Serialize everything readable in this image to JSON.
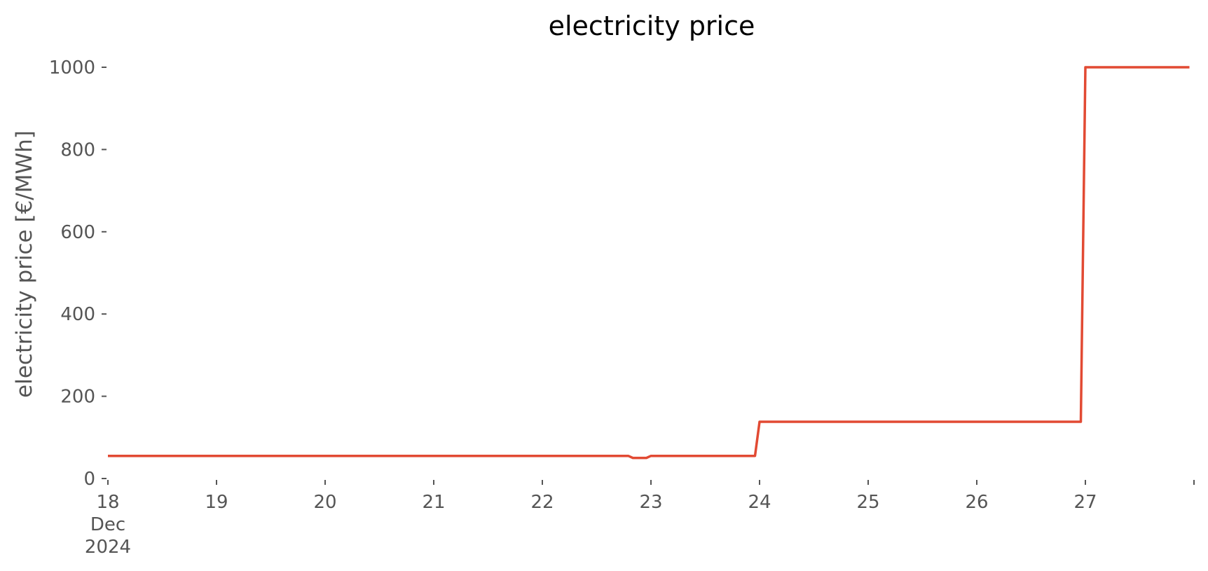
{
  "chart_data": {
    "type": "line",
    "title": "electricity price",
    "xlabel": "",
    "ylabel": "electricity price [€/MWh]",
    "grid": false,
    "legend": "none",
    "xlim": [
      "2024-12-18T00:00",
      "2024-12-27T23:00"
    ],
    "ylim": [
      0,
      1000
    ],
    "yticks": [
      0,
      200,
      400,
      600,
      800,
      1000
    ],
    "xticks": [
      {
        "value": "2024-12-18T00:00",
        "label": [
          "18",
          "Dec",
          "2024"
        ]
      },
      {
        "value": "2024-12-19T00:00",
        "label": [
          "19"
        ]
      },
      {
        "value": "2024-12-20T00:00",
        "label": [
          "20"
        ]
      },
      {
        "value": "2024-12-21T00:00",
        "label": [
          "21"
        ]
      },
      {
        "value": "2024-12-22T00:00",
        "label": [
          "22"
        ]
      },
      {
        "value": "2024-12-23T00:00",
        "label": [
          "23"
        ]
      },
      {
        "value": "2024-12-24T00:00",
        "label": [
          "24"
        ]
      },
      {
        "value": "2024-12-25T00:00",
        "label": [
          "25"
        ]
      },
      {
        "value": "2024-12-26T00:00",
        "label": [
          "26"
        ]
      },
      {
        "value": "2024-12-27T00:00",
        "label": [
          "27"
        ]
      },
      {
        "value": "2024-12-28T00:00",
        "label": []
      }
    ],
    "series": [
      {
        "color": "#e24a33",
        "points": [
          {
            "x": "2024-12-18T00:00",
            "y": 55
          },
          {
            "x": "2024-12-22T19:00",
            "y": 55
          },
          {
            "x": "2024-12-22T20:00",
            "y": 50
          },
          {
            "x": "2024-12-22T23:00",
            "y": 50
          },
          {
            "x": "2024-12-23T00:00",
            "y": 55
          },
          {
            "x": "2024-12-23T23:00",
            "y": 55
          },
          {
            "x": "2024-12-24T00:00",
            "y": 138
          },
          {
            "x": "2024-12-26T23:00",
            "y": 138
          },
          {
            "x": "2024-12-27T00:00",
            "y": 1000
          },
          {
            "x": "2024-12-27T23:00",
            "y": 1000
          }
        ]
      }
    ]
  }
}
